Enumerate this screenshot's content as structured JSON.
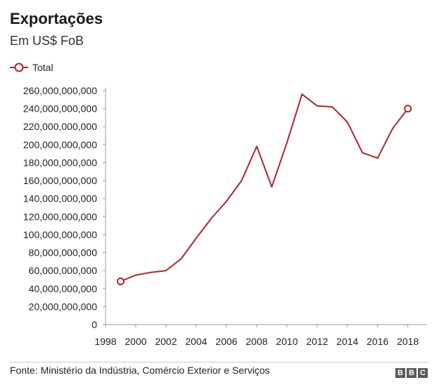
{
  "header": {
    "title": "Exportações",
    "subtitle": "Em US$ FoB"
  },
  "legend": {
    "label": "Total"
  },
  "footer": {
    "source": "Fonte: Ministério da Indústria, Comércio Exterior e Serviços",
    "logo_letters": [
      "B",
      "B",
      "C"
    ]
  },
  "colors": {
    "series": "#b1242c",
    "axis": "#999999",
    "text": "#222222"
  },
  "chart_data": {
    "type": "line",
    "title": "Exportações",
    "subtitle": "Em US$ FoB",
    "xlabel": "",
    "ylabel": "",
    "xlim": [
      1998,
      2018.2
    ],
    "ylim": [
      0,
      260000000000
    ],
    "x_ticks": [
      1998,
      2000,
      2002,
      2004,
      2006,
      2008,
      2010,
      2012,
      2014,
      2016,
      2018
    ],
    "x_tick_labels": [
      "1998",
      "2000",
      "2002",
      "2004",
      "2006",
      "2008",
      "2010",
      "2012",
      "2014",
      "2016",
      "2018"
    ],
    "y_ticks": [
      0,
      20000000000,
      40000000000,
      60000000000,
      80000000000,
      100000000000,
      120000000000,
      140000000000,
      160000000000,
      180000000000,
      200000000000,
      220000000000,
      240000000000,
      260000000000
    ],
    "y_tick_labels": [
      "0",
      "20,000,000,000",
      "40,000,000,000",
      "60,000,000,000",
      "80,000,000,000",
      "100,000,000,000",
      "120,000,000,000",
      "140,000,000,000",
      "160,000,000,000",
      "180,000,000,000",
      "200,000,000,000",
      "220,000,000,000",
      "240,000,000,000",
      "260,000,000,000"
    ],
    "grid": false,
    "legend_position": "top-left",
    "series": [
      {
        "name": "Total",
        "x": [
          1999,
          2000,
          2001,
          2002,
          2003,
          2004,
          2005,
          2006,
          2007,
          2008,
          2009,
          2010,
          2011,
          2012,
          2013,
          2014,
          2015,
          2016,
          2017,
          2018
        ],
        "y": [
          48000000000,
          55000000000,
          58000000000,
          60000000000,
          73000000000,
          96000000000,
          118000000000,
          137000000000,
          160000000000,
          198000000000,
          153000000000,
          202000000000,
          256000000000,
          243000000000,
          242000000000,
          225000000000,
          191000000000,
          185000000000,
          218000000000,
          240000000000
        ],
        "markers_at": [
          1999,
          2018
        ]
      }
    ]
  }
}
